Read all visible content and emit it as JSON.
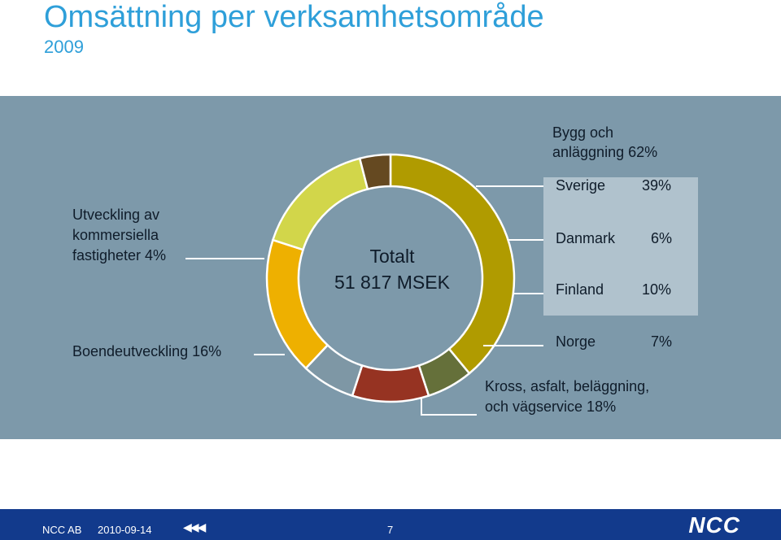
{
  "header": {
    "title": "Omsättning per verksamhetsområde",
    "year": "2009"
  },
  "chart_data": {
    "type": "pie",
    "center_label": [
      "Totalt",
      "51 817 MSEK"
    ],
    "slices": [
      {
        "name": "Sverige",
        "value": 39,
        "color": "#b09b00"
      },
      {
        "name": "Danmark",
        "value": 6,
        "color": "#65703a"
      },
      {
        "name": "Finland",
        "value": 10,
        "color": "#963322"
      },
      {
        "name": "Norge",
        "value": 7,
        "color": "#7e97a5"
      },
      {
        "name": "Kross, asfalt, beläggning, och vägservice",
        "value": 18,
        "color": "#eeb000"
      },
      {
        "name": "Boendeutveckling",
        "value": 16,
        "color": "#d2d64a"
      },
      {
        "name": "Utveckling av kommersiella fastigheter",
        "value": 4,
        "color": "#654921"
      }
    ]
  },
  "labels": {
    "bygg_line1": "Bygg och",
    "bygg_line2": "anläggning 62%",
    "sverige_name": "Sverige",
    "sverige_pct": "39%",
    "danmark_name": "Danmark",
    "danmark_pct": "6%",
    "finland_name": "Finland",
    "finland_pct": "10%",
    "norge_name": "Norge",
    "norge_pct": "7%",
    "kross_line1": "Kross, asfalt, beläggning,",
    "kross_line2": "och vägservice 18%",
    "boende": "Boendeutveckling 16%",
    "utv_line1": "Utveckling av",
    "utv_line2": "kommersiella",
    "utv_line3": "fastigheter 4%",
    "total_label": "Totalt",
    "total_value": "51 817 MSEK"
  },
  "footer": {
    "company": "NCC AB",
    "date": "2010-09-14",
    "page": "7",
    "logo_text": "NCC"
  }
}
